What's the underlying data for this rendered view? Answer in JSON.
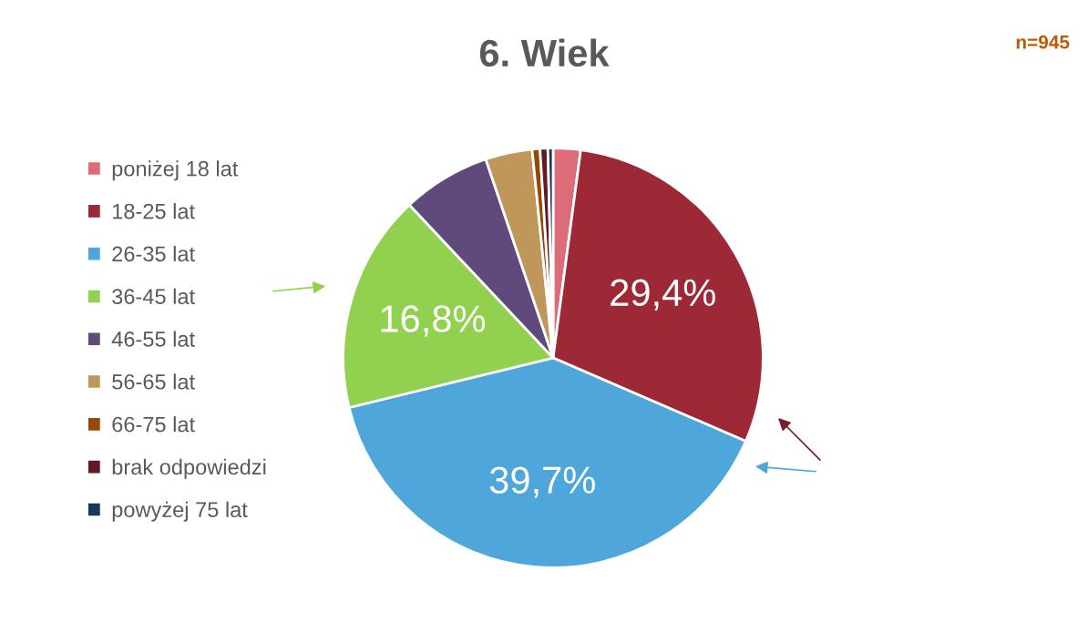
{
  "chart_data": {
    "type": "pie",
    "title": "6. Wiek",
    "categories": [
      "poniżej 18 lat",
      "18-25 lat",
      "26-35 lat",
      "36-45 lat",
      "46-55 lat",
      "56-65 lat",
      "66-75 lat",
      "brak odpowiedzi",
      "powyżej 75 lat"
    ],
    "values": [
      2.1,
      29.4,
      39.7,
      16.8,
      6.8,
      3.6,
      0.6,
      0.6,
      0.4
    ],
    "colors": [
      "#dc6c77",
      "#9e2936",
      "#4ea6da",
      "#92d050",
      "#604a7b",
      "#c0975a",
      "#974806",
      "#621b25",
      "#17375e"
    ],
    "value_labels": [
      null,
      "29,4%",
      "39,7%",
      "16,8%",
      null,
      null,
      null,
      null,
      null
    ],
    "annotations": [
      "n=945"
    ],
    "legend": "left"
  }
}
